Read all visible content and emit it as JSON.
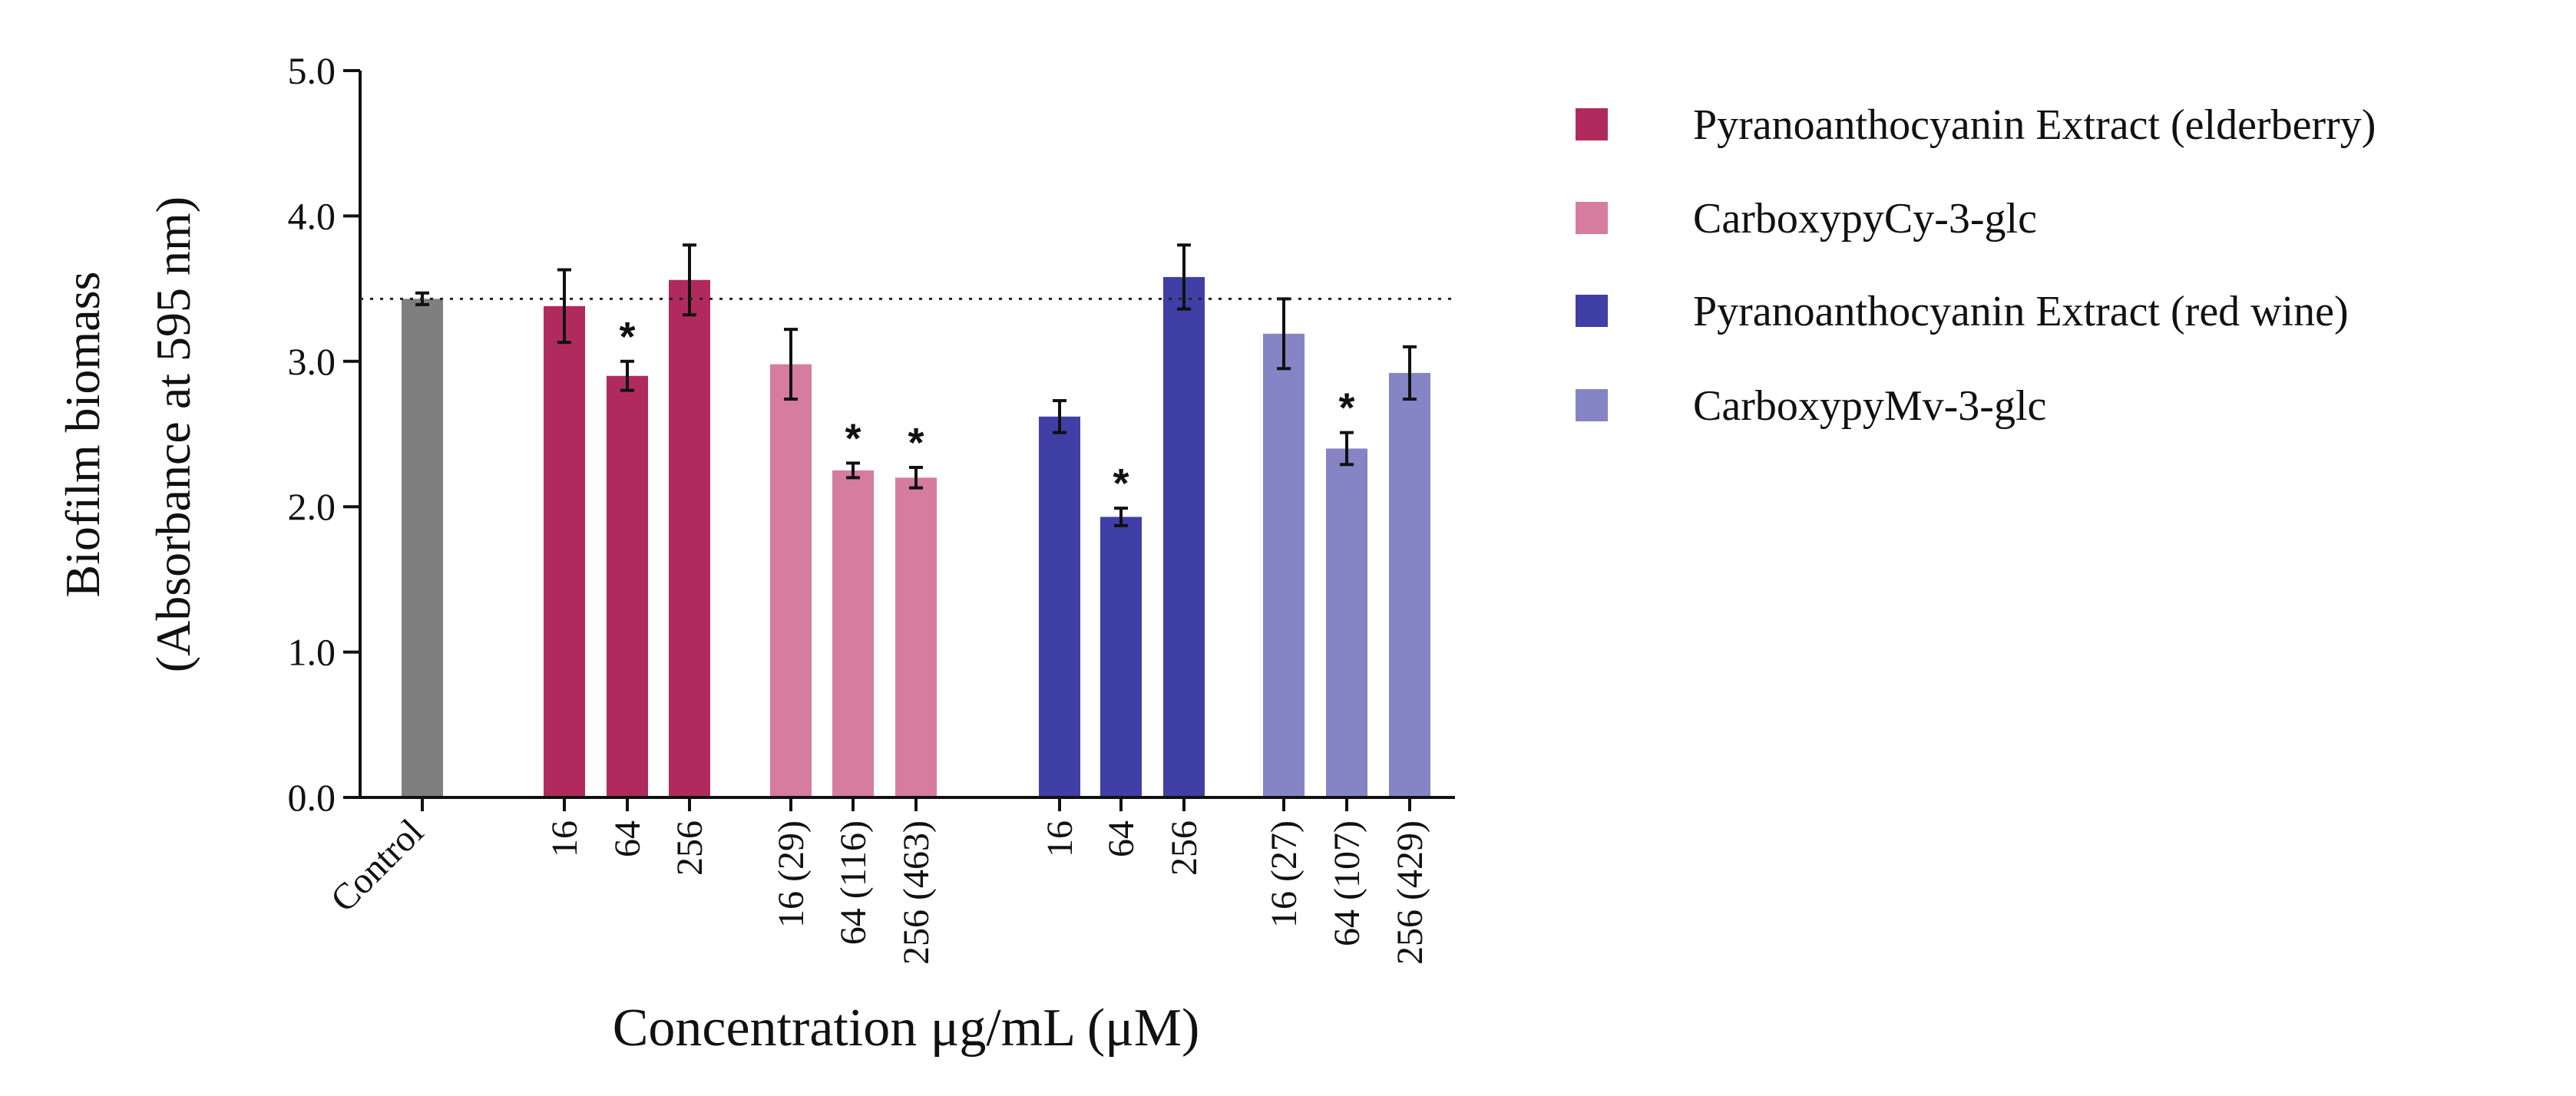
{
  "chart_data": {
    "type": "bar",
    "ylabel_lines": [
      "Biofilm biomass",
      "(Absorbance at 595 nm)"
    ],
    "xlabel": "Concentration μg/mL (μM)",
    "ylim": [
      0,
      5
    ],
    "yticks": [
      "0.0",
      "1.0",
      "2.0",
      "3.0",
      "4.0",
      "5.0"
    ],
    "reference_line": {
      "value": 3.43,
      "style": "dotted",
      "meaning": "Control mean"
    },
    "categories": [
      "Control",
      "16",
      "64",
      "256",
      "16 (29)",
      "64 (116)",
      "256 (463)",
      "16",
      "64",
      "256",
      "16 (27)",
      "64 (107)",
      "256 (429)"
    ],
    "significance_marker": "*",
    "series": [
      {
        "name": "Control",
        "color": "#7f7f7f",
        "in_legend": false,
        "bars": [
          {
            "label": "Control",
            "value": 3.43,
            "error": 0.04,
            "significant": false
          }
        ]
      },
      {
        "name": "Pyranoanthocyanin Extract (elderberry)",
        "color": "#b12a5e",
        "in_legend": true,
        "bars": [
          {
            "label": "16",
            "value": 3.38,
            "error": 0.25,
            "significant": false
          },
          {
            "label": "64",
            "value": 2.9,
            "error": 0.1,
            "significant": true
          },
          {
            "label": "256",
            "value": 3.56,
            "error": 0.24,
            "significant": false
          }
        ]
      },
      {
        "name": "CarboxypyCy-3-glc",
        "color": "#d57c9f",
        "in_legend": true,
        "bars": [
          {
            "label": "16 (29)",
            "value": 2.98,
            "error": 0.24,
            "significant": false
          },
          {
            "label": "64 (116)",
            "value": 2.25,
            "error": 0.05,
            "significant": true
          },
          {
            "label": "256 (463)",
            "value": 2.2,
            "error": 0.07,
            "significant": true
          }
        ]
      },
      {
        "name": "Pyranoanthocyanin Extract (red wine)",
        "color": "#3f3fa6",
        "in_legend": true,
        "bars": [
          {
            "label": "16",
            "value": 2.62,
            "error": 0.11,
            "significant": false
          },
          {
            "label": "64",
            "value": 1.93,
            "error": 0.06,
            "significant": true
          },
          {
            "label": "256",
            "value": 3.58,
            "error": 0.22,
            "significant": false
          }
        ]
      },
      {
        "name": "CarboxypyMv-3-glc",
        "color": "#8584c5",
        "in_legend": true,
        "bars": [
          {
            "label": "16 (27)",
            "value": 3.19,
            "error": 0.24,
            "significant": false
          },
          {
            "label": "64 (107)",
            "value": 2.4,
            "error": 0.11,
            "significant": true
          },
          {
            "label": "256 (429)",
            "value": 2.92,
            "error": 0.18,
            "significant": false
          }
        ]
      }
    ]
  }
}
